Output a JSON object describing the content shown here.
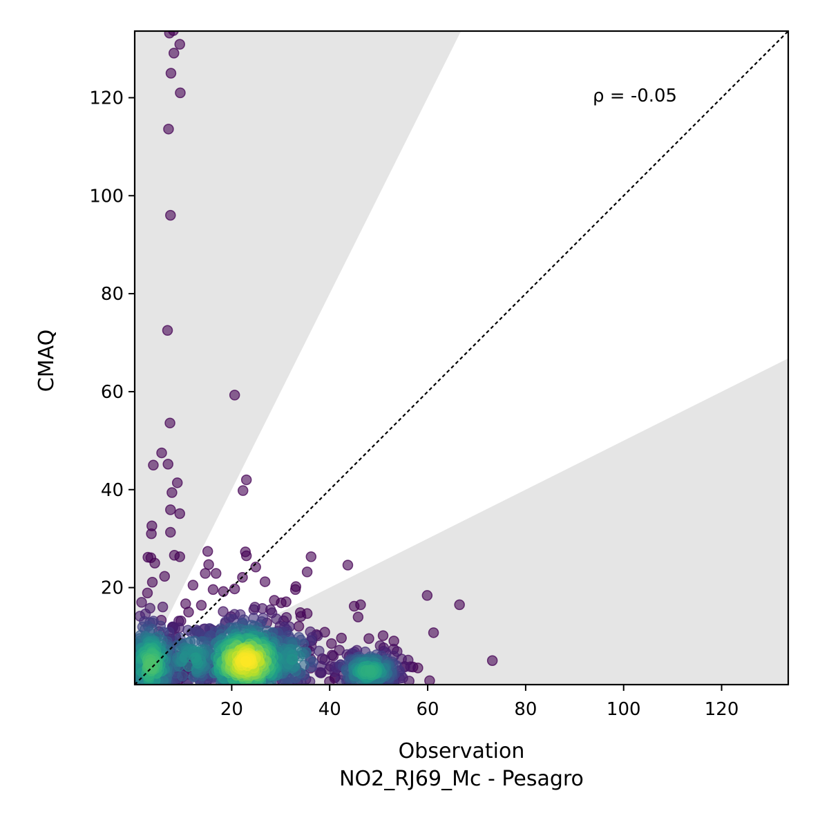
{
  "chart_data": {
    "type": "scatter",
    "xlabel": "Observation",
    "xlabel_sub": "NO2_RJ69_Mc - Pesagro",
    "ylabel": "CMAQ",
    "xlim": [
      0.2,
      133.6
    ],
    "ylim": [
      0.2,
      133.6
    ],
    "x_ticks": [
      20,
      40,
      60,
      80,
      100,
      120
    ],
    "y_ticks": [
      20,
      40,
      60,
      80,
      100,
      120
    ],
    "grid": false,
    "annotation": "ρ = -0.05",
    "identity_line": true,
    "shaded_band_factor": 2,
    "colormap": "viridis",
    "point_color_low": "#440154",
    "band_color": "#e5e5e5",
    "outlier_points": [
      [
        7.3,
        133.2
      ],
      [
        8.1,
        133.7
      ],
      [
        9.4,
        130.9
      ],
      [
        8.2,
        129.1
      ],
      [
        7.6,
        125.0
      ],
      [
        9.5,
        121.0
      ],
      [
        7.1,
        113.6
      ],
      [
        7.5,
        96.0
      ],
      [
        6.9,
        72.5
      ],
      [
        20.6,
        59.3
      ],
      [
        7.4,
        53.6
      ],
      [
        5.7,
        47.5
      ],
      [
        4.0,
        45.0
      ],
      [
        7.0,
        45.2
      ],
      [
        8.9,
        41.4
      ],
      [
        23.0,
        42.0
      ],
      [
        22.3,
        39.8
      ],
      [
        7.8,
        39.4
      ],
      [
        7.5,
        35.9
      ],
      [
        9.4,
        35.1
      ],
      [
        3.7,
        32.6
      ],
      [
        3.6,
        31.0
      ],
      [
        7.5,
        31.3
      ],
      [
        2.9,
        26.2
      ],
      [
        3.5,
        26.1
      ],
      [
        8.3,
        26.6
      ],
      [
        9.4,
        26.3
      ],
      [
        15.1,
        27.4
      ],
      [
        22.8,
        27.3
      ],
      [
        23.0,
        26.5
      ],
      [
        36.2,
        26.3
      ],
      [
        43.7,
        24.6
      ],
      [
        15.3,
        24.7
      ],
      [
        35.4,
        23.2
      ],
      [
        24.9,
        24.2
      ],
      [
        14.6,
        22.9
      ],
      [
        16.8,
        22.9
      ],
      [
        22.2,
        22.1
      ],
      [
        6.3,
        22.3
      ],
      [
        4.3,
        25.0
      ],
      [
        12.1,
        20.5
      ],
      [
        33.0,
        19.6
      ],
      [
        33.1,
        20.2
      ],
      [
        59.9,
        18.4
      ],
      [
        66.5,
        16.5
      ],
      [
        45.0,
        16.2
      ],
      [
        46.3,
        16.5
      ],
      [
        45.8,
        14.0
      ],
      [
        61.2,
        10.8
      ],
      [
        73.2,
        5.1
      ],
      [
        60.4,
        1.0
      ],
      [
        39.0,
        10.9
      ],
      [
        42.4,
        9.7
      ],
      [
        37.3,
        10.4
      ],
      [
        34.0,
        14.9
      ],
      [
        35.4,
        14.7
      ],
      [
        10.6,
        16.7
      ],
      [
        2.8,
        18.9
      ],
      [
        3.8,
        21.1
      ],
      [
        18.3,
        19.2
      ],
      [
        55.3,
        3.9
      ],
      [
        57.0,
        3.8
      ],
      [
        58.0,
        3.6
      ],
      [
        53.1,
        9.1
      ],
      [
        50.9,
        10.2
      ],
      [
        31.1,
        17.1
      ],
      [
        30.1,
        16.9
      ],
      [
        28.7,
        17.4
      ],
      [
        26.8,
        21.2
      ],
      [
        13.8,
        16.4
      ],
      [
        16.2,
        19.6
      ],
      [
        11.2,
        15.0
      ],
      [
        48.0,
        9.6
      ],
      [
        44.0,
        6.0
      ],
      [
        41.0,
        1.5
      ],
      [
        38.5,
        5.5
      ],
      [
        36.4,
        9.2
      ],
      [
        33.7,
        12.1
      ],
      [
        38.2,
        2.6
      ],
      [
        41.9,
        3.8
      ]
    ],
    "clusters": [
      {
        "cx": 3.5,
        "cy": 5.0,
        "sx": 3.0,
        "sy": 5.0,
        "n": 260
      },
      {
        "cx": 23.0,
        "cy": 5.5,
        "sx": 5.5,
        "sy": 4.5,
        "n": 460
      },
      {
        "cx": 48.0,
        "cy": 3.5,
        "sx": 3.6,
        "sy": 2.2,
        "n": 200
      },
      {
        "cx": 12.0,
        "cy": 6.0,
        "sx": 4.0,
        "sy": 3.5,
        "n": 130
      },
      {
        "cx": 32.0,
        "cy": 6.0,
        "sx": 3.5,
        "sy": 3.5,
        "n": 110
      }
    ]
  }
}
